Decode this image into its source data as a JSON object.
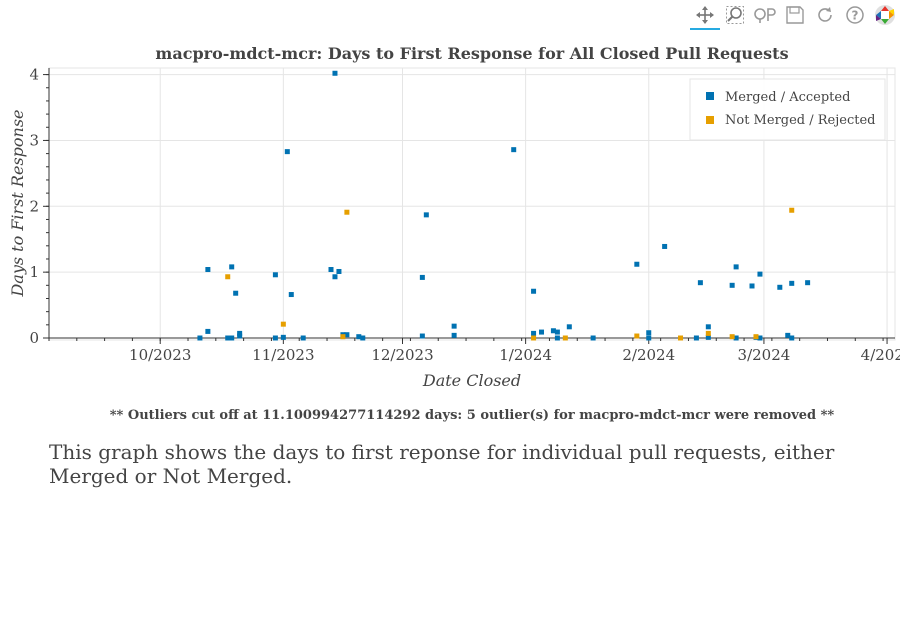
{
  "chart_data": {
    "type": "scatter",
    "title": "macpro-mdct-mcr: Days to First Response for All Closed Pull Requests",
    "xlabel": "Date Closed",
    "ylabel": "Days to First Response",
    "x_axis_type": "datetime",
    "xlim": [
      "2023-09-03",
      "2024-04-03"
    ],
    "ylim": [
      0,
      4.1
    ],
    "x_ticks": [
      {
        "date": "2023-10-01",
        "label": "10/2023"
      },
      {
        "date": "2023-11-01",
        "label": "11/2023"
      },
      {
        "date": "2023-12-01",
        "label": "12/2023"
      },
      {
        "date": "2024-01-01",
        "label": "1/2024"
      },
      {
        "date": "2024-02-01",
        "label": "2/2024"
      },
      {
        "date": "2024-03-01",
        "label": "3/2024"
      },
      {
        "date": "2024-04-01",
        "label": "4/2024"
      }
    ],
    "y_ticks": [
      0,
      1,
      2,
      3,
      4
    ],
    "grid": true,
    "legend_position": "top-right",
    "series": [
      {
        "name": "Merged / Accepted",
        "color": "#0072b2",
        "points": [
          [
            "2023-10-11",
            0.0
          ],
          [
            "2023-10-13",
            1.04
          ],
          [
            "2023-10-13",
            0.1
          ],
          [
            "2023-10-18",
            0.0
          ],
          [
            "2023-10-19",
            1.08
          ],
          [
            "2023-10-19",
            0.0
          ],
          [
            "2023-10-20",
            0.68
          ],
          [
            "2023-10-21",
            0.07
          ],
          [
            "2023-10-21",
            0.03
          ],
          [
            "2023-10-30",
            0.96
          ],
          [
            "2023-10-30",
            0.0
          ],
          [
            "2023-11-01",
            0.01
          ],
          [
            "2023-11-02",
            2.83
          ],
          [
            "2023-11-03",
            0.66
          ],
          [
            "2023-11-06",
            0.0
          ],
          [
            "2023-11-13",
            1.04
          ],
          [
            "2023-11-14",
            4.02
          ],
          [
            "2023-11-14",
            0.93
          ],
          [
            "2023-11-15",
            1.01
          ],
          [
            "2023-11-16",
            0.05
          ],
          [
            "2023-11-17",
            0.05
          ],
          [
            "2023-11-20",
            0.02
          ],
          [
            "2023-11-21",
            0.0
          ],
          [
            "2023-12-06",
            0.92
          ],
          [
            "2023-12-06",
            0.03
          ],
          [
            "2023-12-07",
            1.87
          ],
          [
            "2023-12-14",
            0.18
          ],
          [
            "2023-12-14",
            0.04
          ],
          [
            "2023-12-29",
            2.86
          ],
          [
            "2024-01-03",
            0.71
          ],
          [
            "2024-01-03",
            0.07
          ],
          [
            "2024-01-05",
            0.09
          ],
          [
            "2024-01-08",
            0.11
          ],
          [
            "2024-01-09",
            0.09
          ],
          [
            "2024-01-09",
            0.0
          ],
          [
            "2024-01-12",
            0.17
          ],
          [
            "2024-01-18",
            0.0
          ],
          [
            "2024-01-29",
            1.12
          ],
          [
            "2024-02-01",
            0.0
          ],
          [
            "2024-02-01",
            0.08
          ],
          [
            "2024-02-05",
            1.39
          ],
          [
            "2024-02-13",
            0.0
          ],
          [
            "2024-02-14",
            0.84
          ],
          [
            "2024-02-16",
            0.17
          ],
          [
            "2024-02-16",
            0.01
          ],
          [
            "2024-02-22",
            0.8
          ],
          [
            "2024-02-23",
            1.08
          ],
          [
            "2024-02-23",
            0.0
          ],
          [
            "2024-02-27",
            0.79
          ],
          [
            "2024-02-28",
            0.01
          ],
          [
            "2024-02-29",
            0.97
          ],
          [
            "2024-02-29",
            0.0
          ],
          [
            "2024-03-05",
            0.77
          ],
          [
            "2024-03-07",
            0.04
          ],
          [
            "2024-03-08",
            0.83
          ],
          [
            "2024-03-08",
            0.0
          ],
          [
            "2024-03-12",
            0.84
          ]
        ]
      },
      {
        "name": "Not Merged / Rejected",
        "color": "#e69f00",
        "points": [
          [
            "2023-10-18",
            0.93
          ],
          [
            "2023-11-01",
            0.21
          ],
          [
            "2023-11-17",
            1.91
          ],
          [
            "2023-11-16",
            0.02
          ],
          [
            "2024-01-03",
            0.0
          ],
          [
            "2024-01-11",
            0.0
          ],
          [
            "2024-01-29",
            0.03
          ],
          [
            "2024-02-09",
            0.0
          ],
          [
            "2024-02-16",
            0.07
          ],
          [
            "2024-02-22",
            0.02
          ],
          [
            "2024-02-28",
            0.02
          ],
          [
            "2024-03-08",
            1.94
          ]
        ]
      }
    ],
    "footnote": "** Outliers cut off at 11.100994277114292 days: 5 outlier(s) for macpro-mdct-mcr were removed **"
  },
  "description": "This graph shows the days to first reponse for individual pull requests, either Merged or Not Merged.",
  "toolbar": {
    "tools": [
      "pan-icon",
      "box-zoom-icon",
      "wheel-zoom-icon",
      "save-icon",
      "reset-icon",
      "help-icon",
      "bokeh-logo"
    ]
  }
}
